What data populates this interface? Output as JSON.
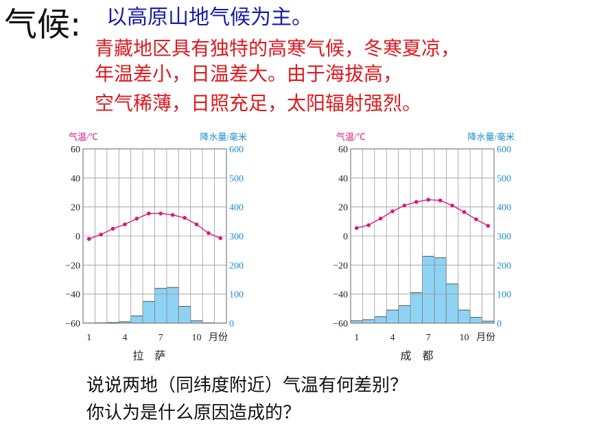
{
  "heading": "气候:",
  "subtitle": "以高原山地气候为主。",
  "description": [
    "青藏地区具有独特的高寒气候，冬寒夏凉，",
    "年温差小，日温差大。由于海拔高，",
    "空气稀薄，日照充足，太阳辐射强烈。"
  ],
  "questions": [
    "说说两地（同纬度附近）气温有何差别？",
    "你认为是什么原因造成的？"
  ],
  "colors": {
    "temperature_line": "#d6197a",
    "precipitation_bar": "#8fd3f4",
    "right_axis": "#1a8fd0",
    "grid": "#9a9a9a"
  },
  "chart_data": [
    {
      "type": "bar+line",
      "title": "拉　萨",
      "xlabel_unit": "月份",
      "x": [
        1,
        2,
        3,
        4,
        5,
        6,
        7,
        8,
        9,
        10,
        11,
        12
      ],
      "xtick_labels": [
        "1",
        "4",
        "7",
        "10"
      ],
      "left_axis": {
        "label": "气温/℃",
        "range": [
          -60,
          60
        ],
        "ticks": [
          "60",
          "40",
          "20",
          "0",
          "−20",
          "−40",
          "−60"
        ]
      },
      "right_axis": {
        "label": "降水量/毫米",
        "range": [
          0,
          600
        ],
        "ticks": [
          "600",
          "500",
          "400",
          "300",
          "200",
          "100",
          "0"
        ]
      },
      "temperature": [
        -2,
        1,
        5,
        8,
        12,
        15.5,
        15.5,
        14.5,
        12.5,
        8,
        2,
        -1.5
      ],
      "precipitation": [
        0.5,
        1,
        2,
        5,
        25,
        75,
        120,
        123,
        58,
        8,
        1,
        0.5
      ],
      "grid": true
    },
    {
      "type": "bar+line",
      "title": "成　都",
      "xlabel_unit": "月份",
      "x": [
        1,
        2,
        3,
        4,
        5,
        6,
        7,
        8,
        9,
        10,
        11,
        12
      ],
      "xtick_labels": [
        "1",
        "4",
        "7",
        "10"
      ],
      "left_axis": {
        "label": "气温/℃",
        "range": [
          -60,
          60
        ],
        "ticks": [
          "60",
          "40",
          "20",
          "0",
          "−20",
          "−40",
          "−60"
        ]
      },
      "right_axis": {
        "label": "降水量/毫米",
        "range": [
          0,
          600
        ],
        "ticks": [
          "600",
          "500",
          "400",
          "300",
          "200",
          "100",
          "0"
        ]
      },
      "temperature": [
        5.5,
        7.5,
        12,
        17,
        21,
        23.5,
        25,
        24.5,
        21,
        16.5,
        11.5,
        7
      ],
      "precipitation": [
        8,
        12,
        22,
        45,
        60,
        105,
        230,
        225,
        135,
        45,
        20,
        7
      ],
      "grid": true
    }
  ]
}
